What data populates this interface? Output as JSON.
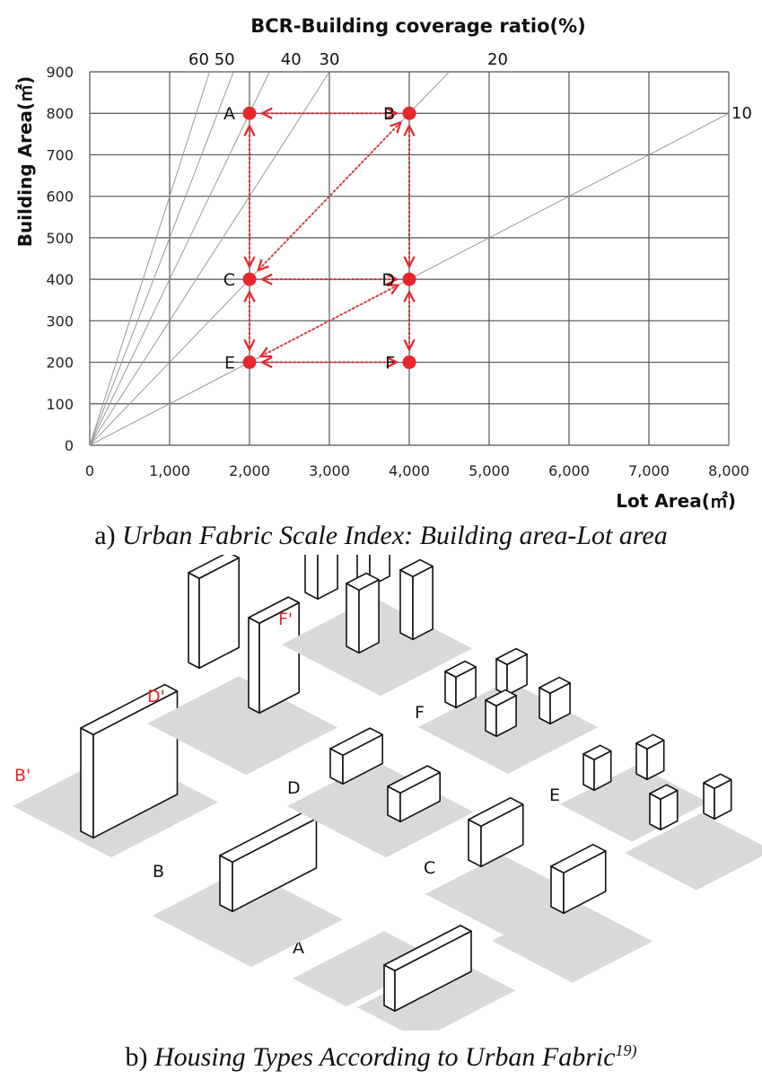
{
  "chart_data": {
    "type": "scatter",
    "title": "BCR-Building coverage ratio(%)",
    "xlabel": "Lot Area(㎡)",
    "ylabel": "Building Area(㎡)",
    "xlim": [
      0,
      8000
    ],
    "ylim": [
      0,
      900
    ],
    "x_ticks": [
      0,
      1000,
      2000,
      3000,
      4000,
      5000,
      6000,
      7000,
      8000
    ],
    "x_tick_labels": [
      "0",
      "1,000",
      "2,000",
      "3,000",
      "4,000",
      "5,000",
      "6,000",
      "7,000",
      "8,000"
    ],
    "y_ticks": [
      0,
      100,
      200,
      300,
      400,
      500,
      600,
      700,
      800,
      900
    ],
    "y_tick_labels": [
      "0",
      "100",
      "200",
      "300",
      "400",
      "500",
      "600",
      "700",
      "800",
      "900"
    ],
    "grid": true,
    "bcr_lines": [
      {
        "ratio": 60,
        "label": "60"
      },
      {
        "ratio": 50,
        "label": "50"
      },
      {
        "ratio": 40,
        "label": "40"
      },
      {
        "ratio": 30,
        "label": "30"
      },
      {
        "ratio": 20,
        "label": "20"
      },
      {
        "ratio": 10,
        "label": "10"
      }
    ],
    "points": [
      {
        "label": "A",
        "x": 2000,
        "y": 800
      },
      {
        "label": "B",
        "x": 4000,
        "y": 800
      },
      {
        "label": "C",
        "x": 2000,
        "y": 400
      },
      {
        "label": "D",
        "x": 4000,
        "y": 400
      },
      {
        "label": "E",
        "x": 2000,
        "y": 200
      },
      {
        "label": "F",
        "x": 4000,
        "y": 200
      }
    ],
    "arrows": [
      [
        "A",
        "B"
      ],
      [
        "C",
        "D"
      ],
      [
        "E",
        "F"
      ],
      [
        "A",
        "C"
      ],
      [
        "C",
        "E"
      ],
      [
        "B",
        "D"
      ],
      [
        "D",
        "F"
      ],
      [
        "B",
        "C"
      ],
      [
        "D",
        "E"
      ]
    ],
    "colors": {
      "point": "#e8262c",
      "grid": "#555555",
      "bcr_line": "#999999"
    }
  },
  "captions": {
    "a_prefix": "a) ",
    "a_text": "Urban Fabric Scale Index: Building area-Lot area",
    "b_prefix": "b) ",
    "b_text": "Housing Types According to Urban Fabric",
    "b_sup": "19)"
  },
  "illustration": {
    "labels": [
      "A",
      "B",
      "C",
      "D",
      "E",
      "F",
      "B'",
      "D'",
      "F'"
    ],
    "colors": {
      "plain": "#111111",
      "prime": "#e8262c",
      "ground": "#d9d9d9"
    }
  }
}
